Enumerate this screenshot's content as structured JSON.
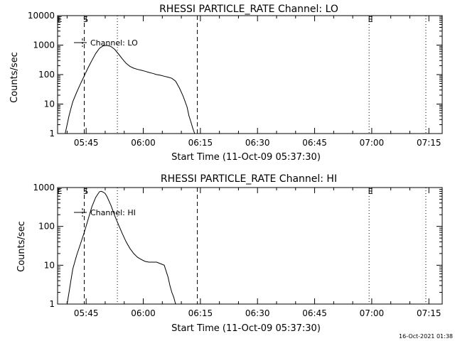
{
  "footer": {
    "timestamp": "16-Oct-2021 01:38"
  },
  "chart_data": [
    {
      "type": "line",
      "title": "RHESSI PARTICLE_RATE Channel: LO",
      "xlabel": "Start Time (11-Oct-09 05:37:30)",
      "ylabel": "Counts/sec",
      "y_scale": "log",
      "x_unit": "minutes since 05:37:30",
      "xlim": [
        0,
        101
      ],
      "ylim": [
        1,
        10000
      ],
      "x_ticks": [
        {
          "x": 7.5,
          "label": "05:45"
        },
        {
          "x": 22.5,
          "label": "06:00"
        },
        {
          "x": 37.5,
          "label": "06:15"
        },
        {
          "x": 52.5,
          "label": "06:30"
        },
        {
          "x": 67.5,
          "label": "06:45"
        },
        {
          "x": 82.5,
          "label": "07:00"
        },
        {
          "x": 97.5,
          "label": "07:15"
        }
      ],
      "y_ticks": [
        {
          "y": 1,
          "label": "1"
        },
        {
          "y": 10,
          "label": "10"
        },
        {
          "y": 100,
          "label": "100"
        },
        {
          "y": 1000,
          "label": "1000"
        },
        {
          "y": 10000,
          "label": "10000"
        }
      ],
      "markers": [
        {
          "x": 7.0,
          "style": "dashed",
          "label": "S"
        },
        {
          "x": 15.7,
          "style": "dotted",
          "label": ""
        },
        {
          "x": 36.7,
          "style": "dashed",
          "label": ""
        },
        {
          "x": 81.8,
          "style": "dotted",
          "label": "E"
        },
        {
          "x": 96.7,
          "style": "dotted",
          "label": ""
        }
      ],
      "edge_marker": "E",
      "legend": {
        "position": "top-left",
        "entries": [
          "Channel: LO"
        ]
      },
      "series": [
        {
          "name": "Channel: LO",
          "x": [
            2.0,
            2.5,
            3.0,
            3.5,
            4.0,
            5.0,
            6.0,
            7.0,
            8.0,
            9.0,
            10.0,
            11.0,
            12.0,
            13.0,
            14.0,
            15.0,
            16.0,
            17.0,
            18.0,
            19.0,
            20.0,
            21.0,
            22.0,
            23.0,
            24.0,
            25.0,
            26.0,
            27.0,
            28.0,
            29.0,
            30.0,
            31.0,
            32.0,
            33.0,
            34.0,
            34.5,
            35.0,
            35.5,
            36.0
          ],
          "y": [
            1.0,
            2.0,
            4.0,
            7.0,
            12,
            25,
            48,
            90,
            170,
            300,
            520,
            780,
            950,
            980,
            900,
            720,
            500,
            340,
            240,
            190,
            165,
            150,
            140,
            130,
            118,
            110,
            100,
            95,
            88,
            82,
            75,
            60,
            35,
            18,
            8,
            4,
            2.5,
            1.5,
            1.0
          ]
        }
      ]
    },
    {
      "type": "line",
      "title": "RHESSI PARTICLE_RATE Channel: HI",
      "xlabel": "Start Time (11-Oct-09 05:37:30)",
      "ylabel": "Counts/sec",
      "y_scale": "log",
      "x_unit": "minutes since 05:37:30",
      "xlim": [
        0,
        101
      ],
      "ylim": [
        1,
        1000
      ],
      "x_ticks": [
        {
          "x": 7.5,
          "label": "05:45"
        },
        {
          "x": 22.5,
          "label": "06:00"
        },
        {
          "x": 37.5,
          "label": "06:15"
        },
        {
          "x": 52.5,
          "label": "06:30"
        },
        {
          "x": 67.5,
          "label": "06:45"
        },
        {
          "x": 82.5,
          "label": "07:00"
        },
        {
          "x": 97.5,
          "label": "07:15"
        }
      ],
      "y_ticks": [
        {
          "y": 1,
          "label": "1"
        },
        {
          "y": 10,
          "label": "10"
        },
        {
          "y": 100,
          "label": "100"
        },
        {
          "y": 1000,
          "label": "1000"
        }
      ],
      "markers": [
        {
          "x": 7.0,
          "style": "dashed",
          "label": "S"
        },
        {
          "x": 15.7,
          "style": "dotted",
          "label": ""
        },
        {
          "x": 36.7,
          "style": "dashed",
          "label": ""
        },
        {
          "x": 81.8,
          "style": "dotted",
          "label": "E"
        },
        {
          "x": 96.7,
          "style": "dotted",
          "label": ""
        }
      ],
      "edge_marker": "E",
      "legend": {
        "position": "top-left",
        "entries": [
          "Channel: HI"
        ]
      },
      "series": [
        {
          "name": "Channel: HI",
          "x": [
            2.5,
            3.0,
            3.5,
            4.0,
            5.0,
            6.0,
            7.0,
            8.0,
            9.0,
            10.0,
            11.0,
            11.5,
            12.0,
            12.5,
            13.0,
            14.0,
            15.0,
            16.0,
            17.0,
            18.0,
            19.0,
            20.0,
            21.0,
            22.0,
            23.0,
            24.0,
            25.0,
            26.0,
            27.0,
            28.0,
            29.0,
            29.5,
            30.0,
            30.5,
            31.0
          ],
          "y": [
            1.0,
            2.0,
            4.0,
            8.0,
            18,
            35,
            70,
            150,
            320,
            560,
            780,
            800,
            760,
            700,
            580,
            350,
            190,
            110,
            65,
            40,
            27,
            20,
            16,
            14,
            12.5,
            12,
            12,
            12,
            11,
            10,
            5,
            3,
            2,
            1.5,
            1.0
          ]
        }
      ]
    }
  ]
}
